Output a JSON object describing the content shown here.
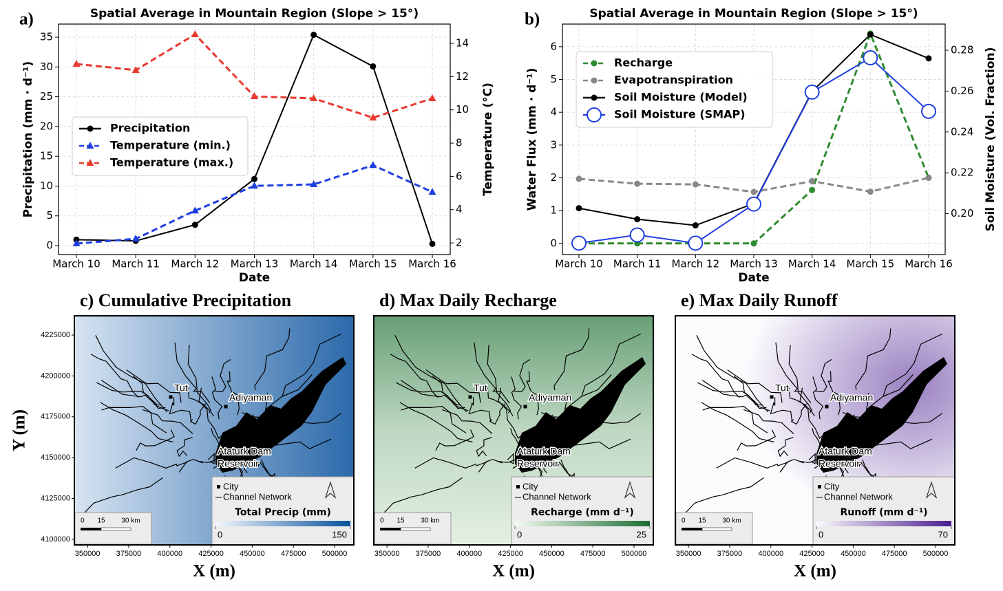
{
  "chart_data": [
    {
      "type": "line",
      "panel": "a)",
      "title": "Spatial Average in Mountain Region (Slope > 15°)",
      "xlabel": "Date",
      "ylabel": "Precipitation (mm · d⁻¹)",
      "y2label": "Temperature (°C)",
      "categories": [
        "March 10",
        "March 11",
        "March 12",
        "March 13",
        "March 14",
        "March 15",
        "March 16"
      ],
      "ylim": [
        -1.5,
        37.2
      ],
      "yticks": [
        0,
        5,
        10,
        15,
        20,
        25,
        30,
        35
      ],
      "y2lim": [
        1.3,
        15.16
      ],
      "y2ticks": [
        2,
        4,
        6,
        8,
        10,
        12,
        14
      ],
      "grid": true,
      "legend": "center left",
      "series": [
        {
          "name": "Precipitation",
          "color": "#000000",
          "marker": "circle",
          "dash": "solid",
          "values": [
            1.0,
            0.8,
            3.5,
            11.2,
            35.4,
            30.1,
            0.3
          ]
        },
        {
          "name": "Temperature (min.)",
          "color": "#1f3fe0",
          "marker": "triangle",
          "dash": "dashed",
          "axis": "y2",
          "values": [
            1.96,
            2.25,
            3.94,
            5.43,
            5.52,
            6.67,
            5.06
          ]
        },
        {
          "name": "Temperature (max.)",
          "color": "#e8392e",
          "marker": "triangle",
          "dash": "dashed",
          "axis": "y2",
          "values": [
            12.76,
            12.39,
            14.54,
            10.81,
            10.69,
            9.53,
            10.69
          ]
        }
      ]
    },
    {
      "type": "line",
      "panel": "b)",
      "title": "Spatial Average in Mountain Region (Slope > 15°)",
      "xlabel": "Date",
      "ylabel": "Water Flux (mm · d⁻¹)",
      "y2label": "Soil Moisture (Vol. Fraction)",
      "categories": [
        "March 10",
        "March 11",
        "March 12",
        "March 13",
        "March 14",
        "March 15",
        "March 16"
      ],
      "ylim": [
        -0.34,
        6.69
      ],
      "yticks": [
        0,
        1,
        2,
        3,
        4,
        5,
        6
      ],
      "y2lim": [
        0.18,
        0.2928
      ],
      "y2ticks": [
        {
          "value": 0.2,
          "label": "0.20"
        },
        0.22,
        0.24,
        0.26,
        0.28
      ],
      "grid": true,
      "legend": "upper left",
      "series": [
        {
          "name": "Recharge",
          "color": "#2e8b2e",
          "marker": "circle",
          "dash": "dashed",
          "values": [
            0,
            0,
            0,
            0,
            1.63,
            6.4,
            2.0
          ]
        },
        {
          "name": "Evapotranspiration",
          "color": "#888888",
          "marker": "circle",
          "dash": "dashed",
          "values": [
            1.97,
            1.82,
            1.8,
            1.57,
            1.9,
            1.58,
            2.0
          ]
        },
        {
          "name": "Soil Moisture (Model)",
          "color": "#000000",
          "marker": "circle",
          "dash": "solid",
          "axis": "y2",
          "values": [
            0.2027,
            0.1973,
            0.1943,
            0.205,
            0.2598,
            0.2877,
            0.276
          ]
        },
        {
          "name": "Soil Moisture (SMAP)",
          "color": "#1f3fe0",
          "marker": "open-circle",
          "dash": "solid",
          "axis": "y2",
          "values": [
            0.1856,
            0.1896,
            0.1856,
            0.2047,
            0.2595,
            0.2763,
            0.2501
          ]
        }
      ]
    },
    {
      "type": "map",
      "title": "c) Cumulative Precipitation",
      "xlabel": "X (m)",
      "ylabel": "Y (m)",
      "xlim": [
        342000,
        511700
      ],
      "xticks": [
        350000,
        375000,
        400000,
        425000,
        450000,
        475000,
        500000
      ],
      "ylim": [
        4096600,
        4236800
      ],
      "yticks": [
        4100000,
        4125000,
        4150000,
        4175000,
        4200000,
        4225000
      ],
      "places": [
        "Tut",
        "Adiyaman"
      ],
      "reservoir_label": [
        "Ataturk Dam",
        "Reservoir"
      ],
      "legend_items": [
        "City",
        "Channel Network"
      ],
      "scale_bar": [
        "0",
        "15",
        "30 km"
      ],
      "colorbar": {
        "label": "Total Precip (mm)",
        "lim": [
          0,
          150
        ],
        "ticks": [
          0,
          150
        ],
        "colors": [
          "#f2f7fd",
          "#08519c"
        ]
      }
    },
    {
      "type": "map",
      "title": "d) Max Daily Recharge",
      "xlabel": "X (m)",
      "xlim": [
        342000,
        511700
      ],
      "xticks": [
        350000,
        375000,
        400000,
        425000,
        450000,
        475000,
        500000
      ],
      "places": [
        "Tut",
        "Adiyaman"
      ],
      "reservoir_label": [
        "Ataturk Dam",
        "Reservoir"
      ],
      "legend_items": [
        "City",
        "Channel Network"
      ],
      "scale_bar": [
        "0",
        "15",
        "30 km"
      ],
      "colorbar": {
        "label": "Recharge (mm d⁻¹)",
        "lim": [
          0,
          25
        ],
        "ticks": [
          0,
          25
        ],
        "colors": [
          "#f5fbf2",
          "#1b6e33"
        ]
      }
    },
    {
      "type": "map",
      "title": "e) Max Daily Runoff",
      "xlabel": "X (m)",
      "xlim": [
        342000,
        511700
      ],
      "xticks": [
        350000,
        375000,
        400000,
        425000,
        450000,
        475000,
        500000
      ],
      "places": [
        "Tut",
        "Adiyaman"
      ],
      "reservoir_label": [
        "Ataturk Dam",
        "Reservoir"
      ],
      "legend_items": [
        "City",
        "Channel Network"
      ],
      "scale_bar": [
        "0",
        "15",
        "30 km"
      ],
      "colorbar": {
        "label": "Runoff (mm d⁻¹)",
        "lim": [
          0,
          70
        ],
        "ticks": [
          0,
          70
        ],
        "colors": [
          "#fbfafd",
          "#4a1d8f"
        ]
      }
    }
  ]
}
